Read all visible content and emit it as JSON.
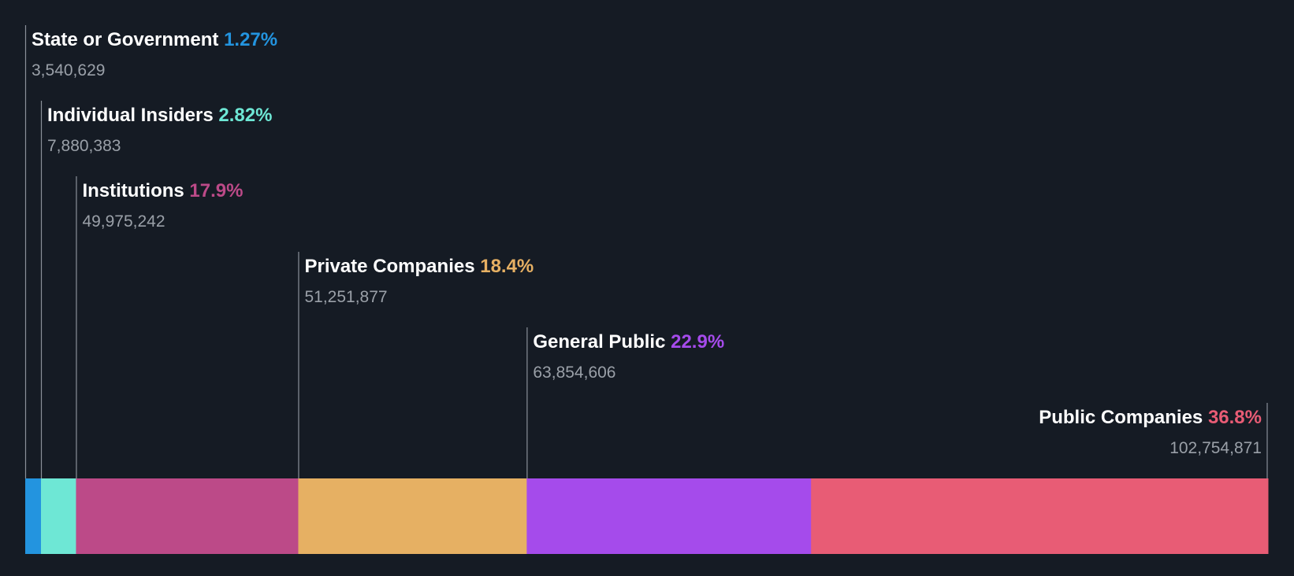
{
  "chart_data": {
    "type": "bar",
    "orientation": "horizontal-stacked-100",
    "title": "",
    "categories": [
      "State or Government",
      "Individual Insiders",
      "Institutions",
      "Private Companies",
      "General Public",
      "Public Companies"
    ],
    "percent_labels": [
      "1.27%",
      "2.82%",
      "17.9%",
      "18.4%",
      "22.9%",
      "36.8%"
    ],
    "percents": [
      1.27,
      2.82,
      17.9,
      18.4,
      22.9,
      36.8
    ],
    "share_labels": [
      "3,540,629",
      "7,880,383",
      "49,975,242",
      "51,251,877",
      "63,854,606",
      "102,754,871"
    ],
    "shares": [
      3540629,
      7880383,
      49975242,
      51251877,
      63854606,
      102754871
    ],
    "colors": [
      "#2394df",
      "#6ee7d5",
      "#bc4a88",
      "#e6b063",
      "#a54beb",
      "#e85c75"
    ],
    "xlim": [
      0,
      100
    ]
  }
}
